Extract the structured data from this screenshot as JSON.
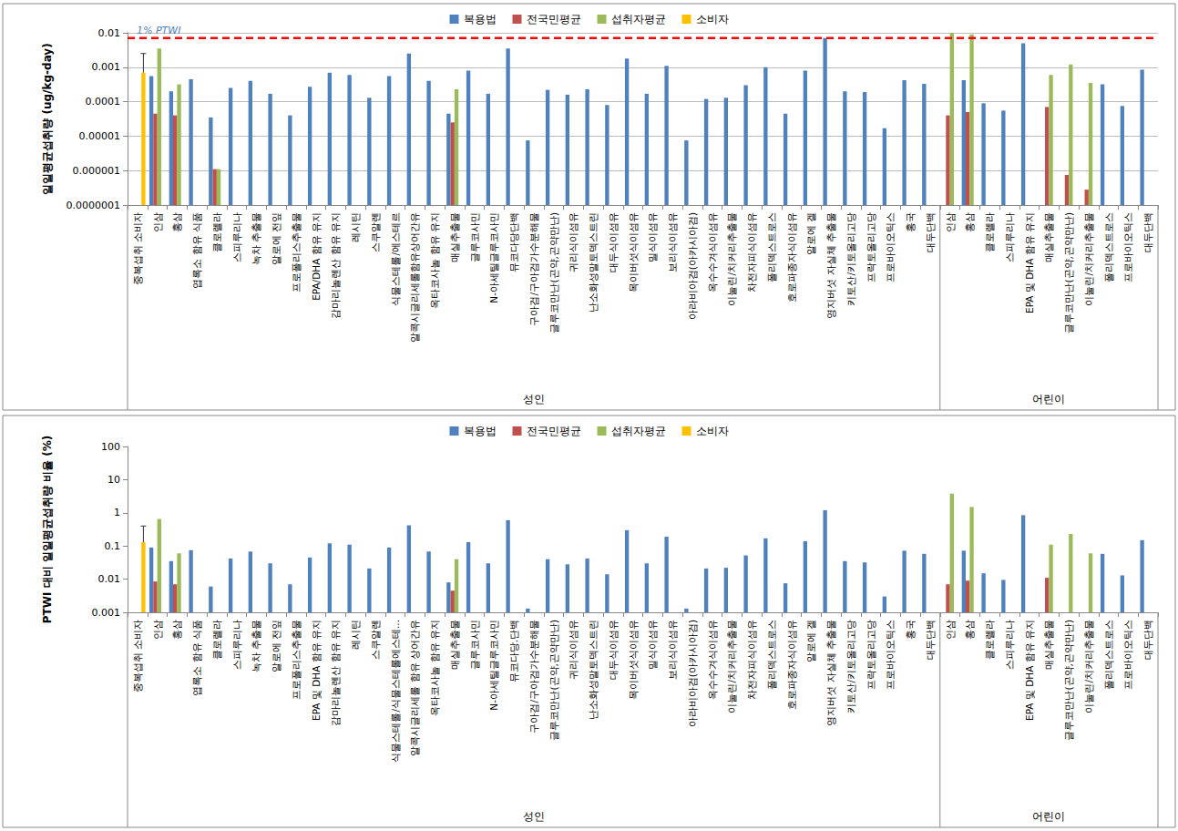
{
  "chart_data": [
    {
      "type": "bar",
      "log": "y",
      "grid": true,
      "legend": "top",
      "y_label": "일일평균섭취량 (ug/kg-day)",
      "ylim": [
        1e-07,
        0.01
      ],
      "yticks": [
        {
          "value": 1e-07,
          "label": "0.0000001"
        },
        1e-06,
        1e-05,
        0.0001,
        0.001,
        0.01
      ],
      "reference_lines": [
        {
          "value": 0.007,
          "label": "1% PTWI"
        }
      ],
      "groups": [
        {
          "label": "성인",
          "count": 41
        },
        {
          "label": "어린이",
          "count": 11
        }
      ],
      "categories": [
        "중복섭취 소비자",
        "인삼",
        "홍삼",
        "엽록소 함유 식품",
        "클로렐라",
        "스피루리나",
        "녹차 추출물",
        "알로에 전잎",
        "프로폴리스추출물",
        "EPA/DHA 함유 유지",
        "감마리놀렌산 함유 유지",
        "레시틴",
        "스쿠알렌",
        "식물스테롤/에스테르",
        "알콕시글리세롤함유상어간유",
        "옥타코사놀 함유 유지",
        "매실추출물",
        "글루코사민",
        "N-아세틸글루코사민",
        "뮤코다당단백",
        "구아검/구아검가수분해물",
        "글루코만난(곤약,곤약만난)",
        "귀리식이섬유",
        "난소화성말토덱스트린",
        "대두식이섬유",
        "목이버섯식이섬유",
        "밀식이섬유",
        "보리식이섬유",
        "아라비아검(아카시아검)",
        "옥수수겨식이섬유",
        "이눌린/치커리추출물",
        "차전자피식이섬유",
        "폴리덱스트로스",
        "호로파종자식이섬유",
        "알로에 겔",
        "영지버섯 자실체 추출물",
        "키토산/키토올리고당",
        "프락토올리고당",
        "프로바이오틱스",
        "홍국",
        "대두단백",
        "인삼",
        "홍삼",
        "클로렐라",
        "스피루리나",
        "EPA 및 DHA 함유 유지",
        "매실추출물",
        "글루코만난(곤약,곤약만난)",
        "이눌린/치커리추출물",
        "폴리덱스트로스",
        "프로바이오틱스",
        "대두단백"
      ],
      "series": [
        {
          "name": "복용법",
          "color": "#4f81bd",
          "values": [
            null,
            0.00055,
            0.0002,
            0.00045,
            3.5e-05,
            0.00025,
            0.0004,
            0.00017,
            4e-05,
            0.00027,
            0.0007,
            0.0006,
            0.00013,
            0.00055,
            0.0025,
            0.0004,
            4.5e-05,
            0.0008,
            0.00017,
            0.0035,
            7.5e-06,
            0.00022,
            0.00016,
            0.00023,
            8e-05,
            0.0018,
            0.00017,
            0.0011,
            7.5e-06,
            0.00012,
            0.00013,
            0.0003,
            0.001,
            4.5e-05,
            0.0008,
            0.007,
            0.0002,
            0.00019,
            1.7e-05,
            0.00042,
            0.00033,
            null,
            0.00042,
            9e-05,
            5.5e-05,
            0.005,
            null,
            null,
            null,
            0.00032,
            7.5e-05,
            0.00085
          ]
        },
        {
          "name": "전국민평균",
          "color": "#c0504d",
          "values": [
            null,
            4.5e-05,
            4e-05,
            null,
            1.1e-06,
            null,
            null,
            null,
            null,
            null,
            null,
            null,
            null,
            null,
            null,
            null,
            2.5e-05,
            null,
            null,
            null,
            null,
            null,
            null,
            null,
            null,
            null,
            null,
            null,
            null,
            null,
            null,
            null,
            null,
            null,
            null,
            null,
            null,
            null,
            null,
            null,
            null,
            4e-05,
            5e-05,
            null,
            null,
            null,
            7e-05,
            7.5e-07,
            2.8e-07,
            null,
            null,
            null
          ]
        },
        {
          "name": "섭취자평균",
          "color": "#9bbb59",
          "values": [
            null,
            0.0035,
            0.00032,
            null,
            1.1e-06,
            null,
            null,
            null,
            null,
            null,
            null,
            null,
            null,
            null,
            null,
            null,
            0.00023,
            null,
            null,
            null,
            null,
            null,
            null,
            null,
            null,
            null,
            null,
            null,
            null,
            null,
            null,
            null,
            null,
            null,
            null,
            null,
            null,
            null,
            null,
            null,
            null,
            0.01,
            0.009,
            null,
            null,
            null,
            0.0006,
            0.0012,
            0.00035,
            null,
            null,
            null
          ]
        },
        {
          "name": "소비자",
          "color": "#ffc000",
          "values": [
            0.0007,
            null,
            null,
            null,
            null,
            null,
            null,
            null,
            null,
            null,
            null,
            null,
            null,
            null,
            null,
            null,
            null,
            null,
            null,
            null,
            null,
            null,
            null,
            null,
            null,
            null,
            null,
            null,
            null,
            null,
            null,
            null,
            null,
            null,
            null,
            null,
            null,
            null,
            null,
            null,
            null,
            null,
            null,
            null,
            null,
            null,
            null,
            null,
            null,
            null,
            null,
            null
          ],
          "errors_upper": [
            0.0025,
            null,
            null,
            null,
            null,
            null,
            null,
            null,
            null,
            null,
            null,
            null,
            null,
            null,
            null,
            null,
            null,
            null,
            null,
            null,
            null,
            null,
            null,
            null,
            null,
            null,
            null,
            null,
            null,
            null,
            null,
            null,
            null,
            null,
            null,
            null,
            null,
            null,
            null,
            null,
            null,
            null,
            null,
            null,
            null,
            null,
            null,
            null,
            null,
            null,
            null,
            null
          ]
        }
      ]
    },
    {
      "type": "bar",
      "log": "y",
      "grid": false,
      "legend": "top",
      "y_label": "PTWI 대비 일일평균섭취량 비율 (%)",
      "ylim": [
        0.001,
        100
      ],
      "yticks": [
        0.001,
        0.01,
        0.1,
        1,
        10,
        100
      ],
      "groups": [
        {
          "label": "성인",
          "count": 41
        },
        {
          "label": "어린이",
          "count": 11
        }
      ],
      "categories": [
        "중복섭취 소비자",
        "인삼",
        "홍삼",
        "엽록소 함유 식품",
        "클로렐라",
        "스피루리나",
        "녹차 추출물",
        "알로에 전잎",
        "프로폴리스추출물",
        "EPA 및 DHA 함유 유지",
        "감마리놀렌산 함유 유지",
        "레시틴",
        "스쿠알렌",
        "식물스테롤/식물스테롤에스테...",
        "알콕시글리세롤 함유 상어간유",
        "옥타코사놀 함유 유지",
        "매실추출물",
        "글루코사민",
        "N-아세틸글루코사민",
        "뮤코다당.단백",
        "구아검/구아검가수분해물",
        "글루코만난(곤약,곤약만난)",
        "귀리식이섬유",
        "난소화성말토덱스트린",
        "대두식이섬유",
        "목이버섯식이섬유",
        "밀식이섬유",
        "보리식이섬유",
        "아라비아검(아카시아검)",
        "옥수수겨식이섬유",
        "이눌린/치커리추출물",
        "차전자피식이섬유",
        "폴리덱스트로스",
        "호로파종자식이섬유",
        "알로에 겔",
        "영지버섯 자실체 추출물",
        "키토산/키토올리고당",
        "프락토올리고당",
        "프로바이오틱스",
        "홍국",
        "대두단백",
        "인삼",
        "홍삼",
        "클로렐라",
        "스피루리나",
        "EPA 및 DHA 함유 유지",
        "매실추출물",
        "글루코만난(곤약,곤약만난)",
        "이눌린/치커리추출물",
        "폴리덱스트로스",
        "프로바이오틱스",
        "대두단백"
      ],
      "series": [
        {
          "name": "복용법",
          "color": "#4f81bd",
          "values": [
            null,
            0.09,
            0.035,
            0.075,
            0.006,
            0.042,
            0.068,
            0.03,
            0.007,
            0.045,
            0.12,
            0.11,
            0.021,
            0.09,
            0.42,
            0.068,
            0.008,
            0.13,
            0.03,
            0.6,
            0.0013,
            0.04,
            0.028,
            0.042,
            0.014,
            0.3,
            0.03,
            0.19,
            0.0013,
            0.021,
            0.022,
            0.052,
            0.17,
            0.0075,
            0.14,
            1.2,
            0.035,
            0.032,
            0.003,
            0.072,
            0.058,
            null,
            0.072,
            0.015,
            0.0095,
            0.85,
            null,
            null,
            null,
            0.058,
            0.013,
            0.15
          ]
        },
        {
          "name": "전국민평균",
          "color": "#c0504d",
          "values": [
            null,
            0.0085,
            0.007,
            null,
            null,
            null,
            null,
            null,
            null,
            null,
            null,
            null,
            null,
            null,
            null,
            null,
            0.0045,
            null,
            null,
            null,
            null,
            null,
            null,
            null,
            null,
            null,
            null,
            null,
            null,
            null,
            null,
            null,
            null,
            null,
            null,
            null,
            null,
            null,
            null,
            null,
            null,
            0.007,
            0.009,
            null,
            null,
            null,
            0.011,
            null,
            null,
            null,
            null,
            null
          ]
        },
        {
          "name": "섭취자평균",
          "color": "#9bbb59",
          "values": [
            null,
            0.65,
            0.06,
            null,
            null,
            null,
            null,
            null,
            null,
            null,
            null,
            null,
            null,
            null,
            null,
            null,
            0.04,
            null,
            null,
            null,
            null,
            null,
            null,
            null,
            null,
            null,
            null,
            null,
            null,
            null,
            null,
            null,
            null,
            null,
            null,
            null,
            null,
            null,
            null,
            null,
            null,
            3.8,
            1.5,
            null,
            null,
            null,
            0.11,
            0.23,
            0.06,
            null,
            null,
            null
          ]
        },
        {
          "name": "소비자",
          "color": "#ffc000",
          "values": [
            0.13,
            null,
            null,
            null,
            null,
            null,
            null,
            null,
            null,
            null,
            null,
            null,
            null,
            null,
            null,
            null,
            null,
            null,
            null,
            null,
            null,
            null,
            null,
            null,
            null,
            null,
            null,
            null,
            null,
            null,
            null,
            null,
            null,
            null,
            null,
            null,
            null,
            null,
            null,
            null,
            null,
            null,
            null,
            null,
            null,
            null,
            null,
            null,
            null,
            null,
            null,
            null
          ],
          "errors_upper": [
            0.4,
            null,
            null,
            null,
            null,
            null,
            null,
            null,
            null,
            null,
            null,
            null,
            null,
            null,
            null,
            null,
            null,
            null,
            null,
            null,
            null,
            null,
            null,
            null,
            null,
            null,
            null,
            null,
            null,
            null,
            null,
            null,
            null,
            null,
            null,
            null,
            null,
            null,
            null,
            null,
            null,
            null,
            null,
            null,
            null,
            null,
            null,
            null,
            null,
            null,
            null,
            null
          ]
        }
      ]
    }
  ]
}
